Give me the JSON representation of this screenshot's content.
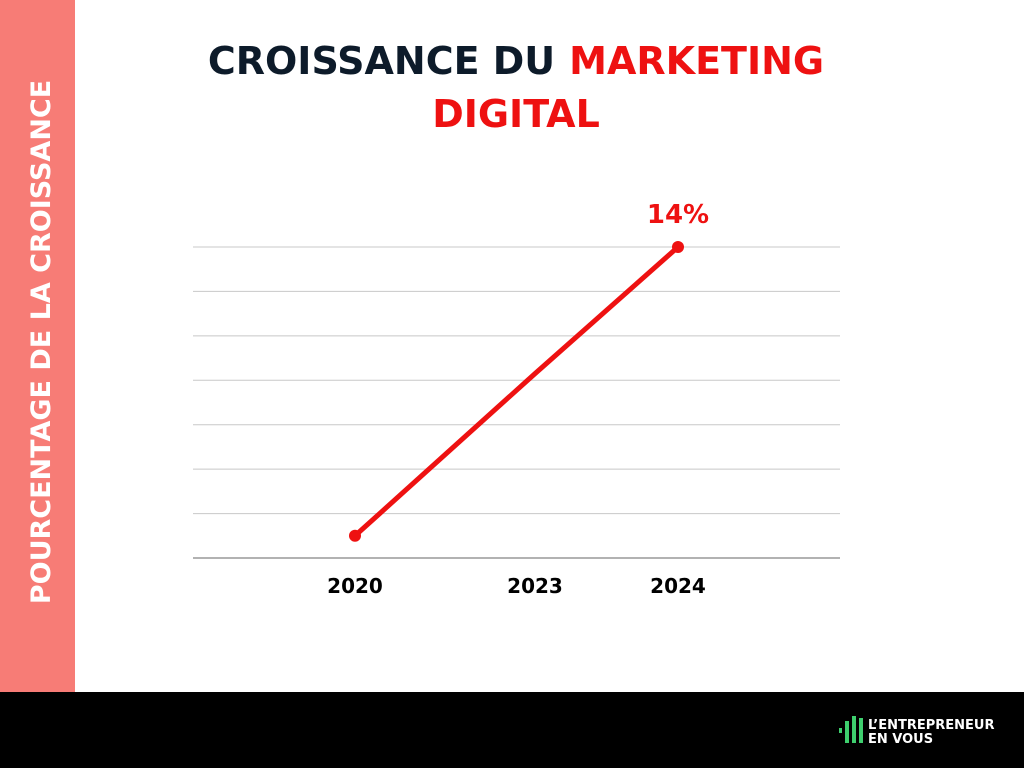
{
  "chart_data": {
    "type": "line",
    "title_parts": [
      "CROISSANCE DU",
      "MARKETING",
      "DIGITAL"
    ],
    "y_label": "POURCENTAGE DE LA CROISSANCE",
    "categories": [
      "2020",
      "2023",
      "2024"
    ],
    "values": [
      1,
      8.3,
      14
    ],
    "value_labels": [
      null,
      null,
      "14%"
    ],
    "color": "#ee1111",
    "ylim": [
      0,
      14
    ],
    "yticks": [
      0,
      2,
      4,
      6,
      8,
      10,
      12,
      14
    ],
    "grid": true
  },
  "brand": [
    "L’ENTREPRENEUR",
    "EN VOUS"
  ]
}
